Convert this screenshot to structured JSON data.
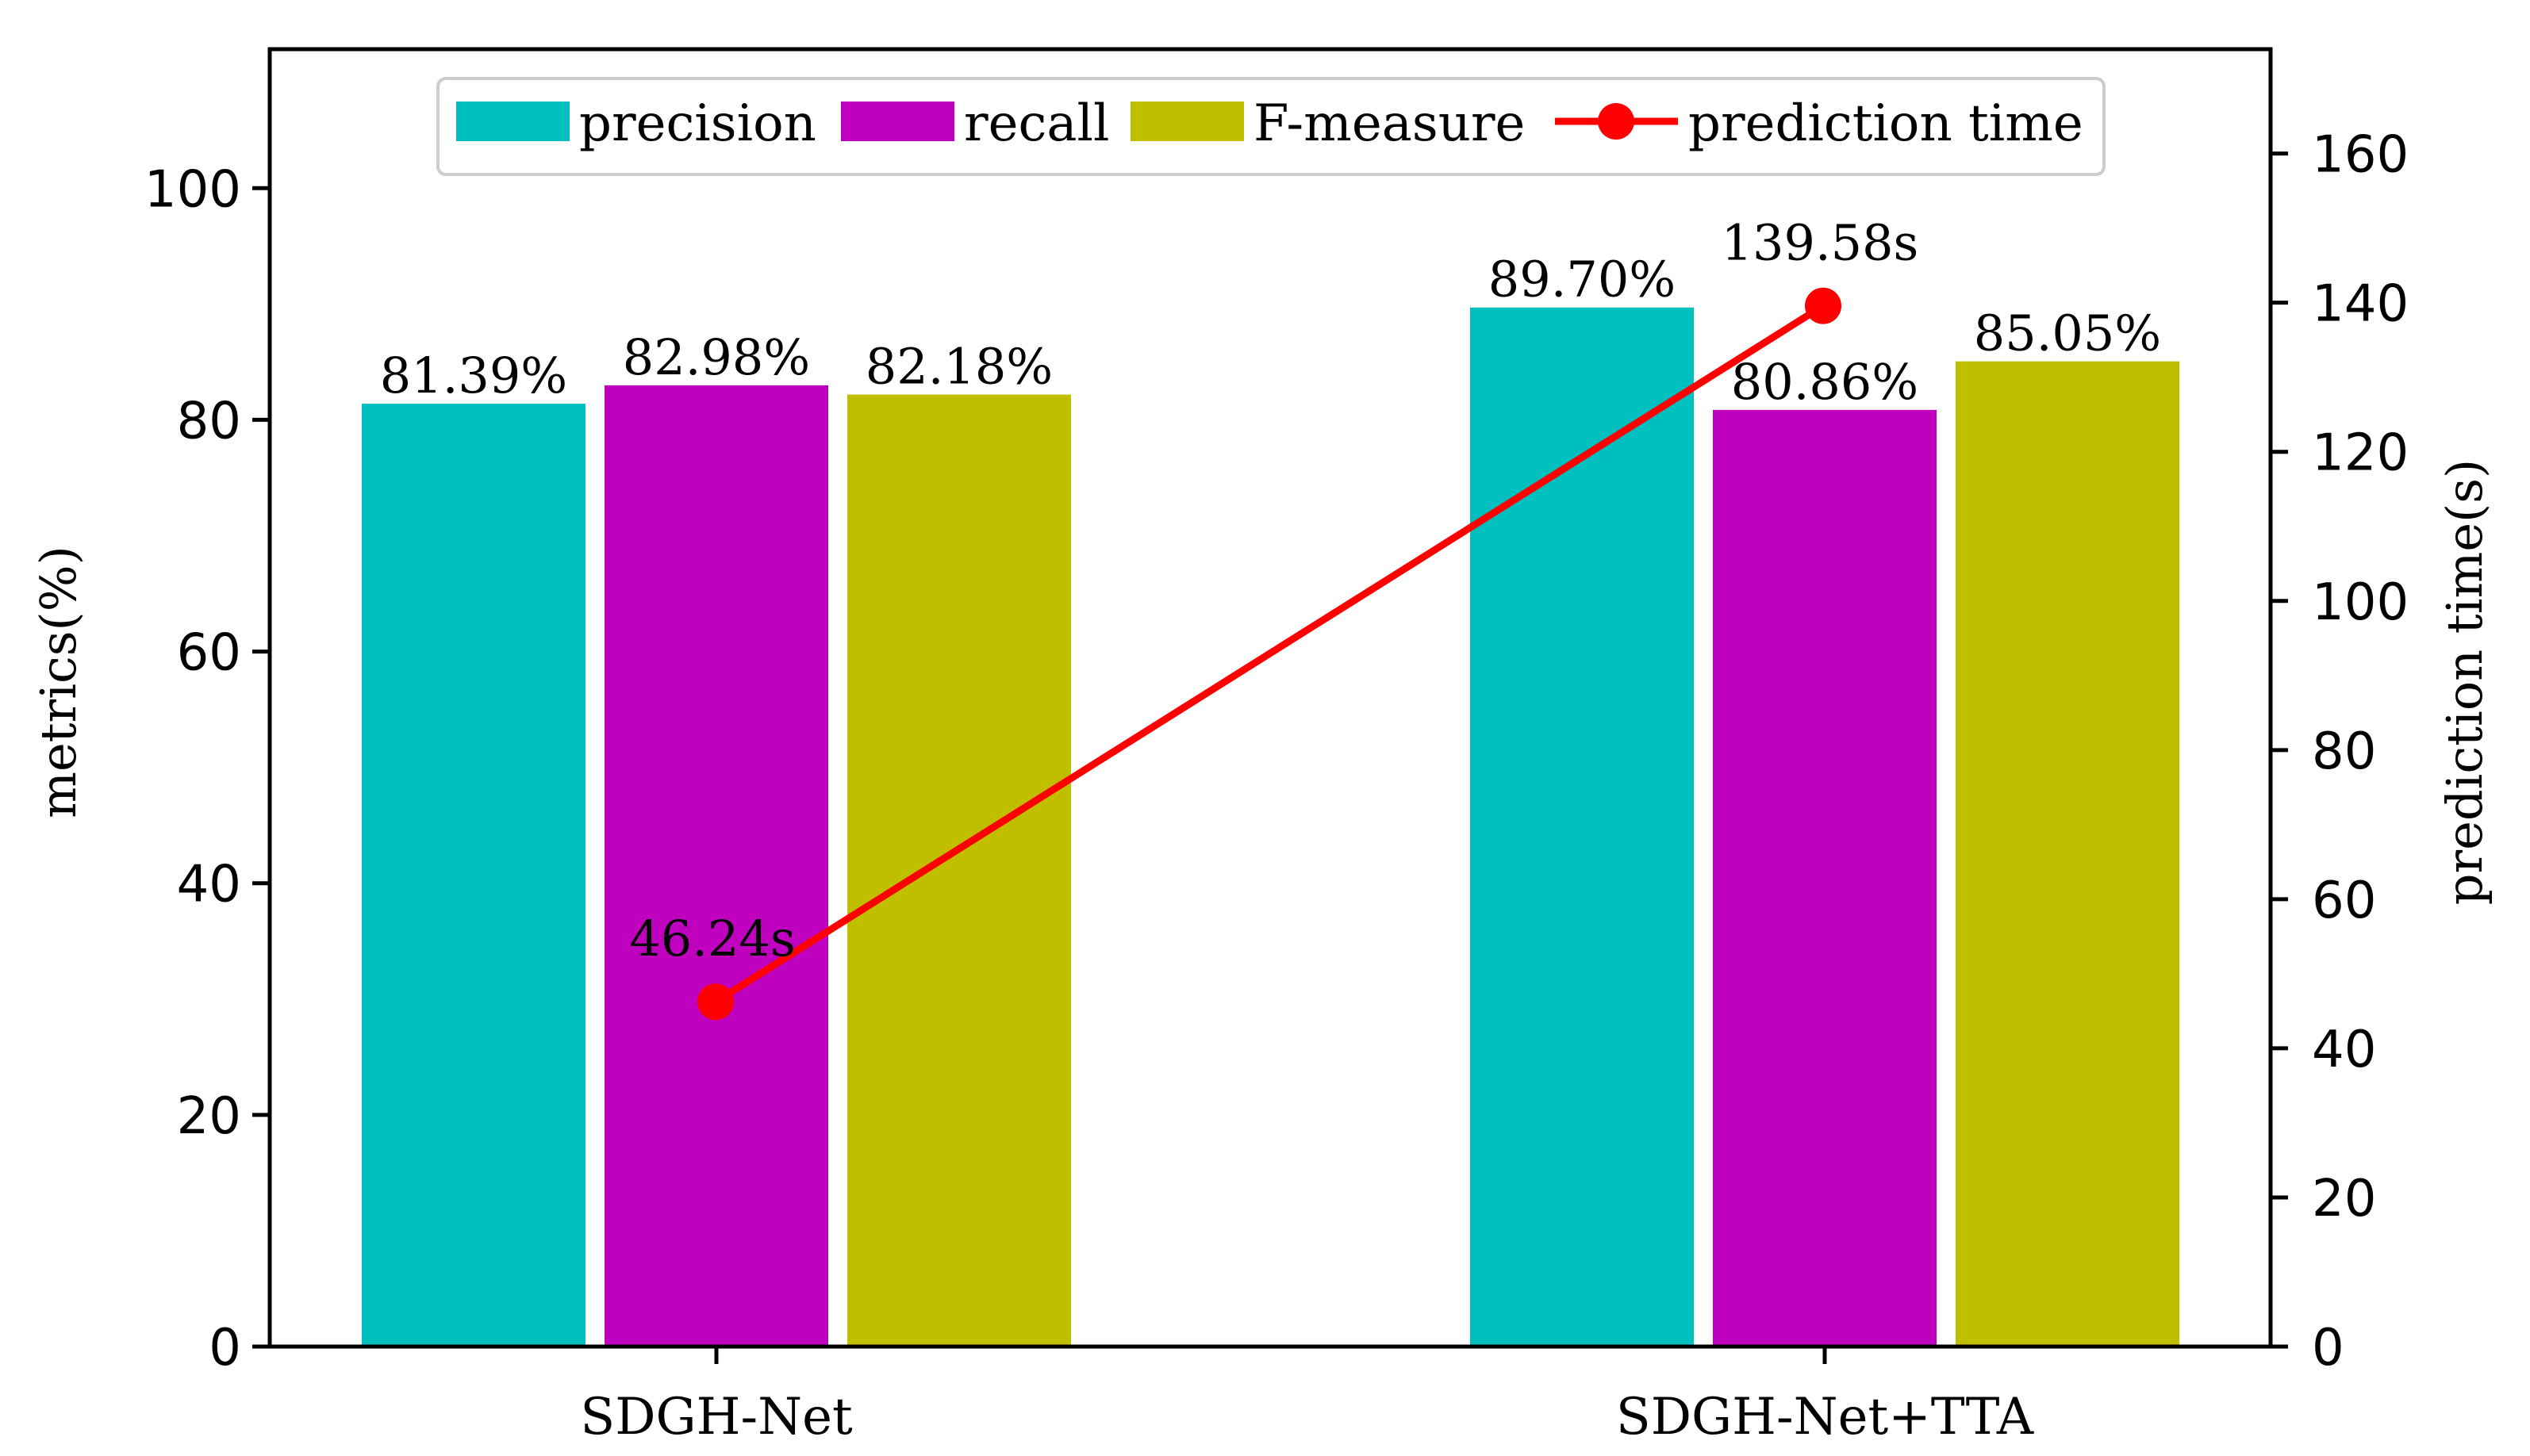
{
  "chart_data": {
    "type": "bar+line",
    "categories": [
      "SDGH-Net",
      "SDGH-Net+TTA"
    ],
    "series": [
      {
        "name": "precision",
        "kind": "bar",
        "axis": "left",
        "color": "#00BFBF",
        "values": [
          81.39,
          89.7
        ],
        "labels": [
          "81.39%",
          "89.70%"
        ]
      },
      {
        "name": "recall",
        "kind": "bar",
        "axis": "left",
        "color": "#BF00BF",
        "values": [
          82.98,
          80.86
        ],
        "labels": [
          "82.98%",
          "80.86%"
        ]
      },
      {
        "name": "F-measure",
        "kind": "bar",
        "axis": "left",
        "color": "#BFBF00",
        "values": [
          82.18,
          85.05
        ],
        "labels": [
          "82.18%",
          "85.05%"
        ]
      },
      {
        "name": "prediction time",
        "kind": "line",
        "axis": "right",
        "color": "#FF0000",
        "values": [
          46.24,
          139.58
        ],
        "labels": [
          "46.24s",
          "139.58s"
        ]
      }
    ],
    "ylabel_left": "metrics(%)",
    "ylabel_right": "prediction time(s)",
    "ylim_left": [
      0,
      112
    ],
    "ylim_right": [
      0,
      174
    ],
    "yticks_left": [
      0,
      20,
      40,
      60,
      80,
      100
    ],
    "yticks_right": [
      0,
      20,
      40,
      60,
      80,
      100,
      120,
      140,
      160
    ],
    "legend_position": "top-center",
    "grid": false
  }
}
